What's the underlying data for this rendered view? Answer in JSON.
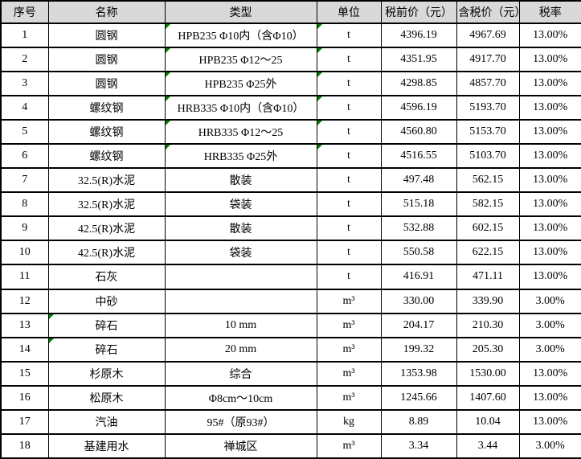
{
  "colors": {
    "header_bg": "#d9d9d9",
    "grid_line": "#000000",
    "error_marker_green": "#008000",
    "cell_bg": "#ffffff"
  },
  "table": {
    "headers": [
      "序号",
      "名称",
      "类型",
      "单位",
      "税前价（元）",
      "含税价（元）",
      "税率"
    ],
    "rows": [
      {
        "cells": [
          "1",
          "圆钢",
          "HPB235 Φ10内（含Φ10）",
          "t",
          "4396.19",
          "4967.69",
          "13.00%"
        ],
        "error_markers": [
          2,
          3
        ]
      },
      {
        "cells": [
          "2",
          "圆钢",
          "HPB235 Φ12～25",
          "t",
          "4351.95",
          "4917.70",
          "13.00%"
        ],
        "error_markers": [
          2,
          3
        ]
      },
      {
        "cells": [
          "3",
          "圆钢",
          "HPB235 Φ25外",
          "t",
          "4298.85",
          "4857.70",
          "13.00%"
        ],
        "error_markers": [
          2,
          3
        ]
      },
      {
        "cells": [
          "4",
          "螺纹钢",
          "HRB335 Φ10内（含Φ10）",
          "t",
          "4596.19",
          "5193.70",
          "13.00%"
        ],
        "error_markers": [
          2,
          3
        ]
      },
      {
        "cells": [
          "5",
          "螺纹钢",
          "HRB335 Φ12～25",
          "t",
          "4560.80",
          "5153.70",
          "13.00%"
        ],
        "error_markers": [
          2,
          3
        ]
      },
      {
        "cells": [
          "6",
          "螺纹钢",
          "HRB335 Φ25外",
          "t",
          "4516.55",
          "5103.70",
          "13.00%"
        ],
        "error_markers": [
          2,
          3
        ]
      },
      {
        "cells": [
          "7",
          "32.5(R)水泥",
          "散装",
          "t",
          "497.48",
          "562.15",
          "13.00%"
        ],
        "error_markers": []
      },
      {
        "cells": [
          "8",
          "32.5(R)水泥",
          "袋装",
          "t",
          "515.18",
          "582.15",
          "13.00%"
        ],
        "error_markers": []
      },
      {
        "cells": [
          "9",
          "42.5(R)水泥",
          "散装",
          "t",
          "532.88",
          "602.15",
          "13.00%"
        ],
        "error_markers": []
      },
      {
        "cells": [
          "10",
          "42.5(R)水泥",
          "袋装",
          "t",
          "550.58",
          "622.15",
          "13.00%"
        ],
        "error_markers": []
      },
      {
        "cells": [
          "11",
          "石灰",
          "",
          "t",
          "416.91",
          "471.11",
          "13.00%"
        ],
        "error_markers": []
      },
      {
        "cells": [
          "12",
          "中砂",
          "",
          "m³",
          "330.00",
          "339.90",
          "3.00%"
        ],
        "error_markers": []
      },
      {
        "cells": [
          "13",
          "碎石",
          "10 mm",
          "m³",
          "204.17",
          "210.30",
          "3.00%"
        ],
        "error_markers": [
          1
        ]
      },
      {
        "cells": [
          "14",
          "碎石",
          "20 mm",
          "m³",
          "199.32",
          "205.30",
          "3.00%"
        ],
        "error_markers": [
          1
        ]
      },
      {
        "cells": [
          "15",
          "杉原木",
          "综合",
          "m³",
          "1353.98",
          "1530.00",
          "13.00%"
        ],
        "error_markers": []
      },
      {
        "cells": [
          "16",
          "松原木",
          "Φ8cm～10cm",
          "m³",
          "1245.66",
          "1407.60",
          "13.00%"
        ],
        "error_markers": []
      },
      {
        "cells": [
          "17",
          "汽油",
          "95#（原93#）",
          "kg",
          "8.89",
          "10.04",
          "13.00%"
        ],
        "error_markers": []
      },
      {
        "cells": [
          "18",
          "基建用水",
          "禅城区",
          "m³",
          "3.34",
          "3.44",
          "3.00%"
        ],
        "error_markers": []
      }
    ]
  }
}
